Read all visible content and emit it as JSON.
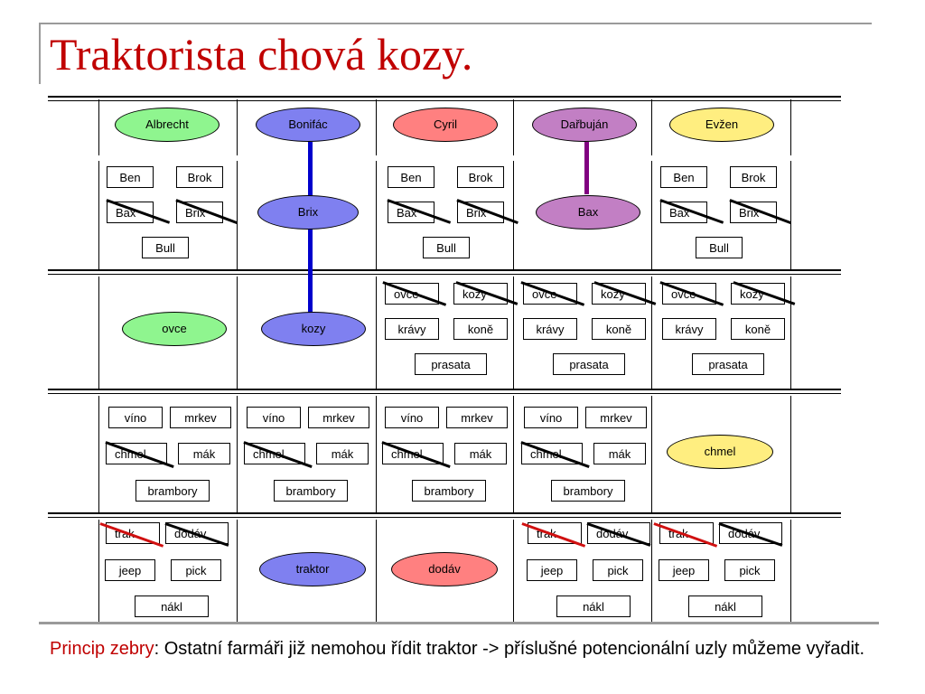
{
  "title": "Traktorista chová kozy.",
  "colors": {
    "green": "#8ff58f",
    "blue": "#7f80f0",
    "red": "#ff8080",
    "purple": "#c27fc4",
    "yellow": "#ffee80",
    "link_blue": "#0000cc",
    "link_purple": "#800080",
    "cross_red": "#d01010"
  },
  "farmers": [
    "Albrecht",
    "Bonifác",
    "Cyril",
    "Dařbuján",
    "Evžen"
  ],
  "dogs": [
    "Ben",
    "Brok",
    "Bax",
    "Brix",
    "Bull"
  ],
  "animals": [
    "ovce",
    "kozy",
    "krávy",
    "koně",
    "prasata"
  ],
  "crops": [
    "víno",
    "mrkev",
    "chmel",
    "mák",
    "brambory"
  ],
  "vehicles": [
    "trak",
    "dodáv",
    "jeep",
    "pick",
    "nákl"
  ],
  "assigned": {
    "brix": "Brix",
    "bax": "Bax",
    "ovce": "ovce",
    "kozy": "kozy",
    "chmel": "chmel",
    "traktor": "traktor",
    "dodav": "dodáv"
  },
  "caption": {
    "highlight": "Princip zebry",
    "text": ": Ostatní farmáři již nemohou řídit traktor -> příslušné potencionální uzly můžeme vyřadit."
  }
}
